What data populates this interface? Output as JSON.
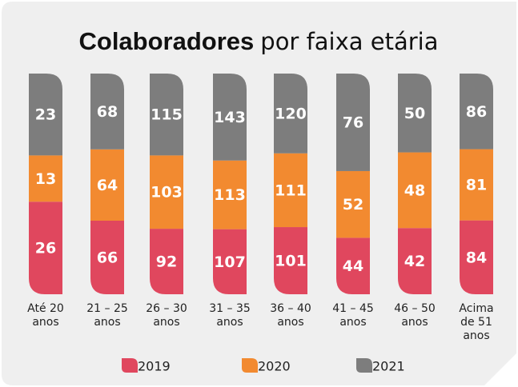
{
  "chart_data": {
    "type": "bar",
    "stacked": "percent",
    "title": "Colaboradores",
    "subtitle": "por faixa etária",
    "categories": [
      "Até 20 anos",
      "21 – 25 anos",
      "26 – 30 anos",
      "31 – 35 anos",
      "36 – 40 anos",
      "41 – 45 anos",
      "46 – 50 anos",
      "Acima de 51 anos"
    ],
    "series": [
      {
        "name": "2019",
        "color": "#e0475e",
        "values": [
          26,
          66,
          92,
          107,
          101,
          44,
          42,
          84
        ]
      },
      {
        "name": "2020",
        "color": "#f28a30",
        "values": [
          13,
          64,
          103,
          113,
          111,
          52,
          48,
          81
        ]
      },
      {
        "name": "2021",
        "color": "#7d7d7d",
        "values": [
          23,
          68,
          115,
          143,
          120,
          76,
          50,
          86
        ]
      }
    ]
  }
}
